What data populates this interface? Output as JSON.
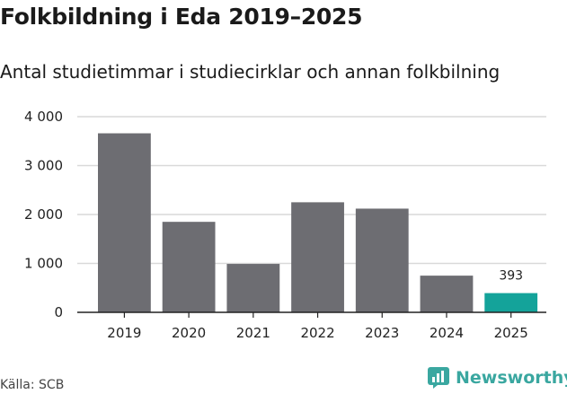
{
  "header": {
    "title": "Folkbildning i Eda 2019–2025",
    "subtitle": "Antal studietimmar i studiecirklar och annan folkbilning"
  },
  "footer": {
    "source": "Källa: SCB",
    "brand": "Newsworthy",
    "brand_color": "#3aa7a0"
  },
  "colors": {
    "bar": "#6d6d72",
    "highlight": "#14a39a",
    "grid": "#d9d9d9",
    "axis": "#222222"
  },
  "chart_data": {
    "type": "bar",
    "categories": [
      "2019",
      "2020",
      "2021",
      "2022",
      "2023",
      "2024",
      "2025"
    ],
    "values": [
      3660,
      1850,
      990,
      2250,
      2120,
      750,
      393
    ],
    "highlight_index": 6,
    "data_labels": [
      "",
      "",
      "",
      "",
      "",
      "",
      "393"
    ],
    "ylim": [
      0,
      4000
    ],
    "yticks": [
      0,
      1000,
      2000,
      3000,
      4000
    ],
    "ytick_labels": [
      "0",
      "1 000",
      "2 000",
      "3 000",
      "4 000"
    ],
    "grid": true
  }
}
